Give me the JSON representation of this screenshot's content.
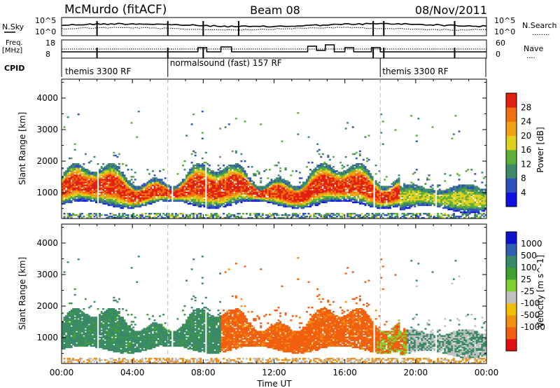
{
  "header": {
    "station": "McMurdo (fitACF)",
    "beam": "Beam 08",
    "date": "08/Nov/2011"
  },
  "labels": {
    "nsky": "N.Sky",
    "nsearch": "N.Search",
    "freq_top": "Freq.",
    "freq_unit": "[MHz]",
    "nave": "Nave",
    "cpid": "CPID",
    "cpid_dots": "........",
    "nave_dots": "....",
    "nsky_left_ticks": [
      "10^5",
      "10^0"
    ],
    "nsearch_right_ticks": [
      "10^5",
      "10^0"
    ],
    "freq_ticks": [
      "18",
      "8"
    ],
    "nave_ticks": [
      "60",
      "0"
    ]
  },
  "cpid_segments": [
    {
      "label": "themis 3300 RF",
      "start_h": 0,
      "end_h": 6
    },
    {
      "label": "normalsound (fast) 157 RF",
      "start_h": 6,
      "end_h": 18
    },
    {
      "label": "themis 3300 RF",
      "start_h": 18,
      "end_h": 24
    }
  ],
  "colors": {
    "power": [
      "#1010e0",
      "#3050c0",
      "#3e8a68",
      "#5db03a",
      "#e0d020",
      "#f0a010",
      "#f07010",
      "#e02010"
    ],
    "velocity": [
      "#e01010",
      "#f06010",
      "#f09010",
      "#f0c000",
      "#c0c0c0",
      "#80d030",
      "#40a030",
      "#3a8a68",
      "#3060b0",
      "#1010d0"
    ]
  },
  "chart_data": [
    {
      "type": "heatmap",
      "title": "",
      "xlabel": "",
      "ylabel": "Slant Range [km]",
      "xlim": [
        0,
        24
      ],
      "ylim": [
        180,
        4600
      ],
      "x_ticks": [
        "00:00",
        "04:00",
        "08:00",
        "12:00",
        "16:00",
        "20:00",
        "00:00"
      ],
      "y_ticks": [
        "1000",
        "2000",
        "3000",
        "4000"
      ],
      "colorbar": {
        "label": "Power [dB]",
        "ticks": [
          "4",
          "8",
          "12",
          "16",
          "20",
          "24",
          "28"
        ],
        "range": [
          0,
          32
        ]
      },
      "summary": [
        {
          "time": "00:00",
          "main_echo_km": [
            600,
            1700
          ],
          "peak_db": 28
        },
        {
          "time": "04:00",
          "main_echo_km": [
            650,
            1800
          ],
          "peak_db": 28
        },
        {
          "time": "08:00",
          "main_echo_km": [
            600,
            1900
          ],
          "peak_db": 30
        },
        {
          "time": "12:00",
          "main_echo_km": [
            600,
            1800
          ],
          "peak_db": 30
        },
        {
          "time": "16:00",
          "main_echo_km": [
            600,
            1700
          ],
          "peak_db": 30
        },
        {
          "time": "20:00",
          "main_echo_km": [
            500,
            1300
          ],
          "peak_db": 16
        }
      ]
    },
    {
      "type": "heatmap",
      "title": "",
      "xlabel": "Time UT",
      "ylabel": "Slant Range [km]",
      "xlim": [
        0,
        24
      ],
      "ylim": [
        180,
        4600
      ],
      "x_ticks": [
        "00:00",
        "04:00",
        "08:00",
        "12:00",
        "16:00",
        "20:00",
        "00:00"
      ],
      "y_ticks": [
        "1000",
        "2000",
        "3000",
        "4000"
      ],
      "colorbar": {
        "label": "Velocity [m s^-1]",
        "ticks": [
          "1000",
          "500",
          "100",
          "25",
          "-25",
          "-100",
          "-500",
          "-1000"
        ]
      },
      "summary": [
        {
          "time": "00:00-09:00",
          "dominant_velocity_ms": 300
        },
        {
          "time": "09:00-18:00",
          "dominant_velocity_ms": -300
        },
        {
          "time": "18:00-24:00",
          "dominant_velocity_ms": 50
        }
      ]
    }
  ]
}
